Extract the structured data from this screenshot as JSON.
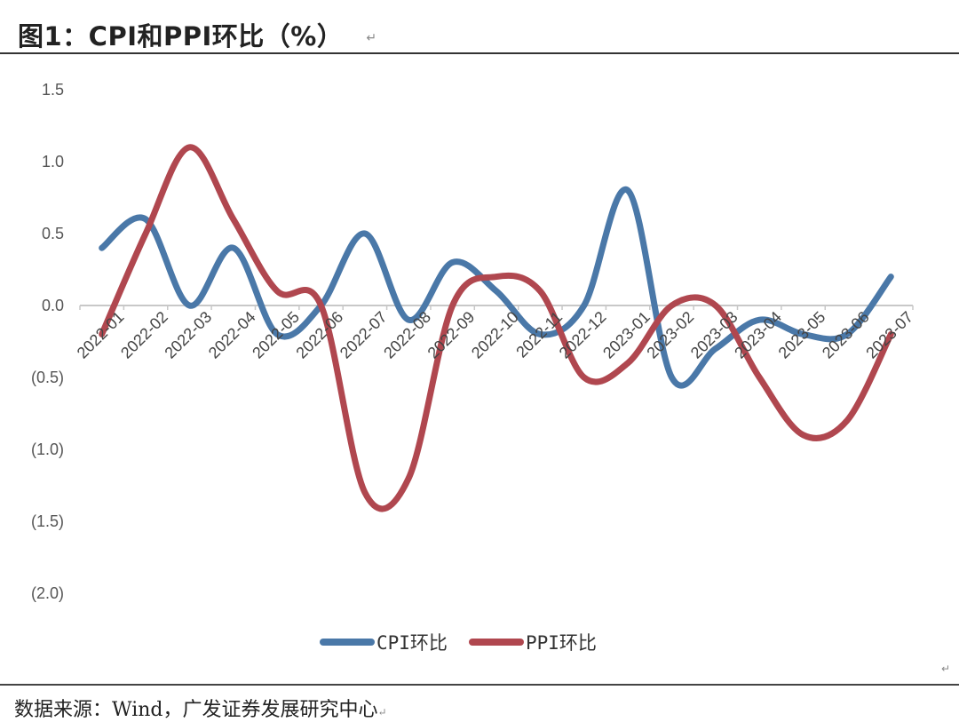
{
  "header": {
    "title": "图1：CPI和PPI环比（%）",
    "return_mark": "↵"
  },
  "footer": {
    "source": "数据来源：Wind，广发证券发展研究中心",
    "return_mark": "↵"
  },
  "colors": {
    "cpi": "#4a78a8",
    "ppi": "#b0474f",
    "axis": "#c8c8c8",
    "rule": "#333333"
  },
  "chart_data": {
    "type": "line",
    "title": "CPI和PPI环比（%）",
    "xlabel": "",
    "ylabel": "%",
    "ylim": [
      -2.0,
      1.5
    ],
    "yticks": [
      1.5,
      1.0,
      0.5,
      0.0,
      -0.5,
      -1.0,
      -1.5,
      -2.0
    ],
    "ytick_labels": [
      "1.5",
      "1.0",
      "0.5",
      "0.0",
      "(0.5)",
      "(1.0)",
      "(1.5)",
      "(2.0)"
    ],
    "grid": false,
    "smoothed": true,
    "legend_position": "bottom",
    "categories": [
      "2022-01",
      "2022-02",
      "2022-03",
      "2022-04",
      "2022-05",
      "2022-06",
      "2022-07",
      "2022-08",
      "2022-09",
      "2022-10",
      "2022-11",
      "2022-12",
      "2023-01",
      "2023-02",
      "2023-03",
      "2023-04",
      "2023-05",
      "2023-06",
      "2023-07"
    ],
    "series": [
      {
        "name": "CPI环比",
        "color": "#4a78a8",
        "values": [
          0.4,
          0.6,
          0.0,
          0.4,
          -0.2,
          0.0,
          0.5,
          -0.1,
          0.3,
          0.1,
          -0.2,
          0.0,
          0.8,
          -0.5,
          -0.3,
          -0.1,
          -0.2,
          -0.2,
          0.2
        ]
      },
      {
        "name": "PPI环比",
        "color": "#b0474f",
        "values": [
          -0.2,
          0.5,
          1.1,
          0.6,
          0.1,
          0.0,
          -1.3,
          -1.2,
          0.0,
          0.2,
          0.1,
          -0.5,
          -0.4,
          0.0,
          0.0,
          -0.5,
          -0.9,
          -0.8,
          -0.2
        ]
      }
    ]
  }
}
